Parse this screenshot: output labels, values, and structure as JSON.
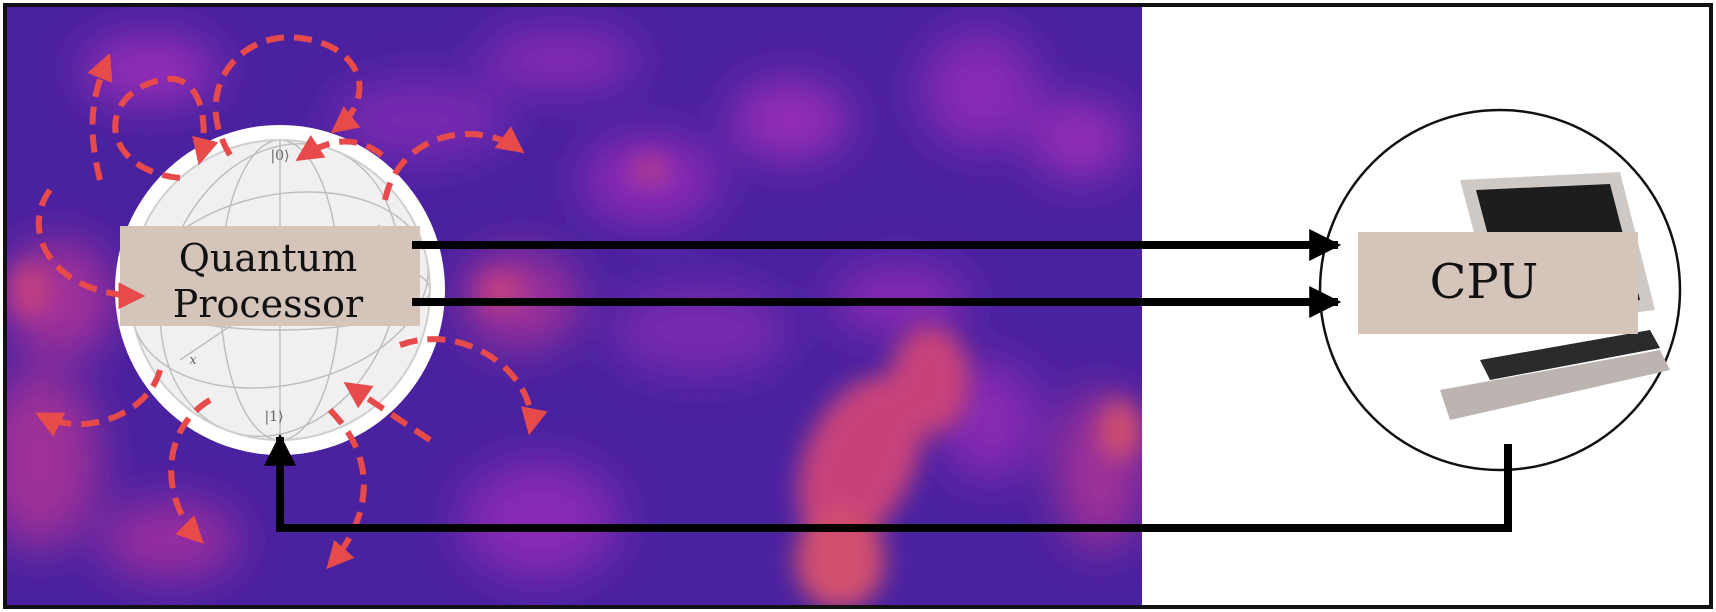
{
  "quantum_processor": {
    "line1": "Quantum",
    "line2": "Processor",
    "ket0": "|0⟩",
    "ket1": "|1⟩",
    "axis_x": "x"
  },
  "cpu": {
    "label": "CPU"
  },
  "colors": {
    "noise_background": "#4a22a0",
    "noise_hotspot": "#e25a6a",
    "noise_mid": "#8a2cb5",
    "label_box": "#d4c4ba",
    "arrow": "#000000",
    "dashed_arrow": "#e64a4a"
  },
  "icons": [
    "bloch-sphere-icon",
    "laptop-icon"
  ]
}
